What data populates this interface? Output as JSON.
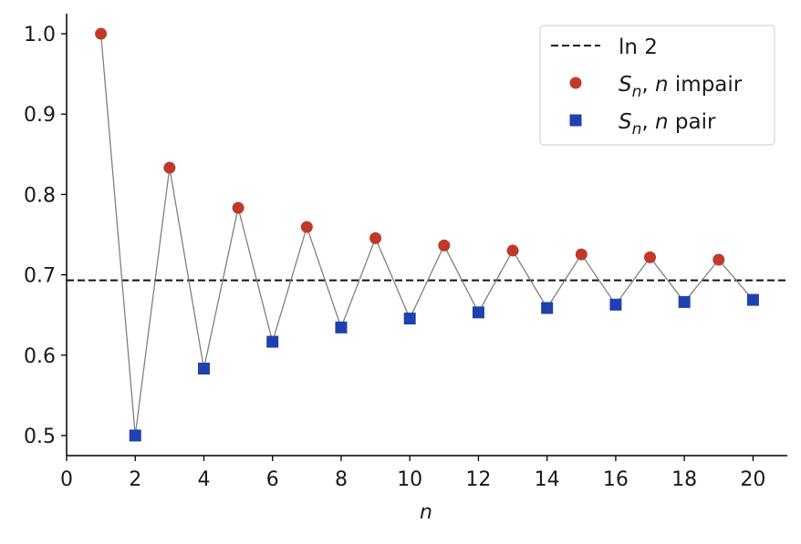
{
  "chart_data": {
    "type": "scatter",
    "xlabel": "n",
    "ylabel": "",
    "xlim": [
      0,
      21
    ],
    "ylim": [
      0.475,
      1.025
    ],
    "xticks": [
      0,
      2,
      4,
      6,
      8,
      10,
      12,
      14,
      16,
      18,
      20
    ],
    "yticks": [
      0.5,
      0.6,
      0.7,
      0.8,
      0.9,
      1.0
    ],
    "ytick_labels": [
      "0.5",
      "0.6",
      "0.7",
      "0.8",
      "0.9",
      "1.0"
    ],
    "grid": false,
    "legend_position": "top-right",
    "reference_line": {
      "label": "ln 2",
      "value": 0.6931,
      "style": "dashed",
      "color": "#111111"
    },
    "connecting_line": {
      "color": "#808080",
      "x": [
        1,
        2,
        3,
        4,
        5,
        6,
        7,
        8,
        9,
        10,
        11,
        12,
        13,
        14,
        15,
        16,
        17,
        18,
        19,
        20
      ],
      "y": [
        1.0,
        0.5,
        0.8333,
        0.5833,
        0.7833,
        0.6167,
        0.7595,
        0.6345,
        0.7456,
        0.6456,
        0.7365,
        0.6532,
        0.7301,
        0.6587,
        0.7254,
        0.6629,
        0.7218,
        0.6662,
        0.7188,
        0.6688
      ]
    },
    "series": [
      {
        "name": "S_n, n impair",
        "legend_parts": [
          "S",
          "n",
          ", ",
          "n",
          " impair"
        ],
        "marker": "circle",
        "color": "#c0392b",
        "x": [
          1,
          3,
          5,
          7,
          9,
          11,
          13,
          15,
          17,
          19
        ],
        "y": [
          1.0,
          0.8333,
          0.7833,
          0.7595,
          0.7456,
          0.7365,
          0.7301,
          0.7254,
          0.7218,
          0.7188
        ]
      },
      {
        "name": "S_n, n pair",
        "legend_parts": [
          "S",
          "n",
          ", ",
          "n",
          " pair"
        ],
        "marker": "square",
        "color": "#2040b0",
        "x": [
          2,
          4,
          6,
          8,
          10,
          12,
          14,
          16,
          18,
          20
        ],
        "y": [
          0.5,
          0.5833,
          0.6167,
          0.6345,
          0.6456,
          0.6532,
          0.6587,
          0.6629,
          0.6662,
          0.6688
        ]
      }
    ]
  }
}
